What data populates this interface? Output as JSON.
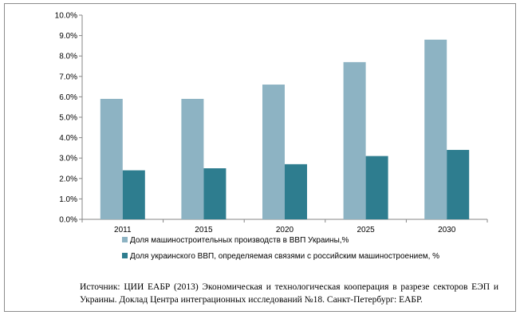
{
  "chart_data": {
    "type": "bar",
    "categories": [
      "2011",
      "2015",
      "2020",
      "2025",
      "2030"
    ],
    "series": [
      {
        "name": "Доля машиностроительных производств в ВВП Украины,%",
        "values": [
          5.9,
          5.9,
          6.6,
          7.7,
          8.8
        ],
        "color": "#8db3c3"
      },
      {
        "name": "Доля украинского ВВП, определяемая связями с российским машиностроением, %",
        "values": [
          2.4,
          2.5,
          2.7,
          3.1,
          3.4
        ],
        "color": "#2e7d8f"
      }
    ],
    "ylim": [
      0,
      10
    ],
    "ytick_labels": [
      "0.0%",
      "1.0%",
      "2.0%",
      "3.0%",
      "4.0%",
      "5.0%",
      "6.0%",
      "7.0%",
      "8.0%",
      "9.0%",
      "10.0%"
    ],
    "grid": false,
    "legend_position": "bottom"
  },
  "source_note": "Источник: ЦИИ ЕАБР (2013) Экономическая и технологическая кооперация в разрезе секторов ЕЭП и Украины. Доклад Центра интеграционных исследований №18. Санкт-Петербург: ЕАБР."
}
